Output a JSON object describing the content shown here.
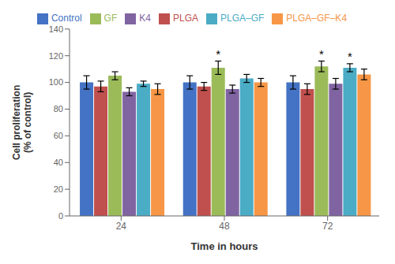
{
  "chart_data": {
    "type": "bar",
    "xlabel": "Time in hours",
    "ylabel": "Cell proliferation\n(% of control)",
    "categories": [
      "24",
      "48",
      "72"
    ],
    "series": [
      {
        "name": "Control",
        "color": "#4472C4",
        "values": [
          100,
          100,
          100
        ],
        "errors": [
          5,
          5,
          5
        ]
      },
      {
        "name": "PLGA",
        "color": "#C0504D",
        "values": [
          97,
          97,
          95
        ],
        "errors": [
          4,
          3,
          4
        ]
      },
      {
        "name": "GF",
        "color": "#9BBB59",
        "values": [
          105,
          111,
          112
        ],
        "errors": [
          3,
          5,
          4
        ]
      },
      {
        "name": "K4",
        "color": "#8064A2",
        "values": [
          93,
          95,
          99
        ],
        "errors": [
          3,
          3,
          4
        ]
      },
      {
        "name": "PLGA–GF",
        "color": "#4BACC6",
        "values": [
          99,
          103,
          111
        ],
        "errors": [
          2,
          3,
          3
        ]
      },
      {
        "name": "PLGA–GF–K4",
        "color": "#F79646",
        "values": [
          95,
          100,
          106
        ],
        "errors": [
          4,
          3,
          4
        ]
      }
    ],
    "annotations": [
      {
        "text": "*",
        "category": "48",
        "series": "GF"
      },
      {
        "text": "*",
        "category": "72",
        "series": "GF"
      },
      {
        "text": "*",
        "category": "72",
        "series": "PLGA–GF"
      }
    ],
    "ylim": [
      0,
      140
    ],
    "yticks": [
      0,
      20,
      40,
      60,
      80,
      100,
      120,
      140
    ],
    "grid": false,
    "legend": "top"
  }
}
